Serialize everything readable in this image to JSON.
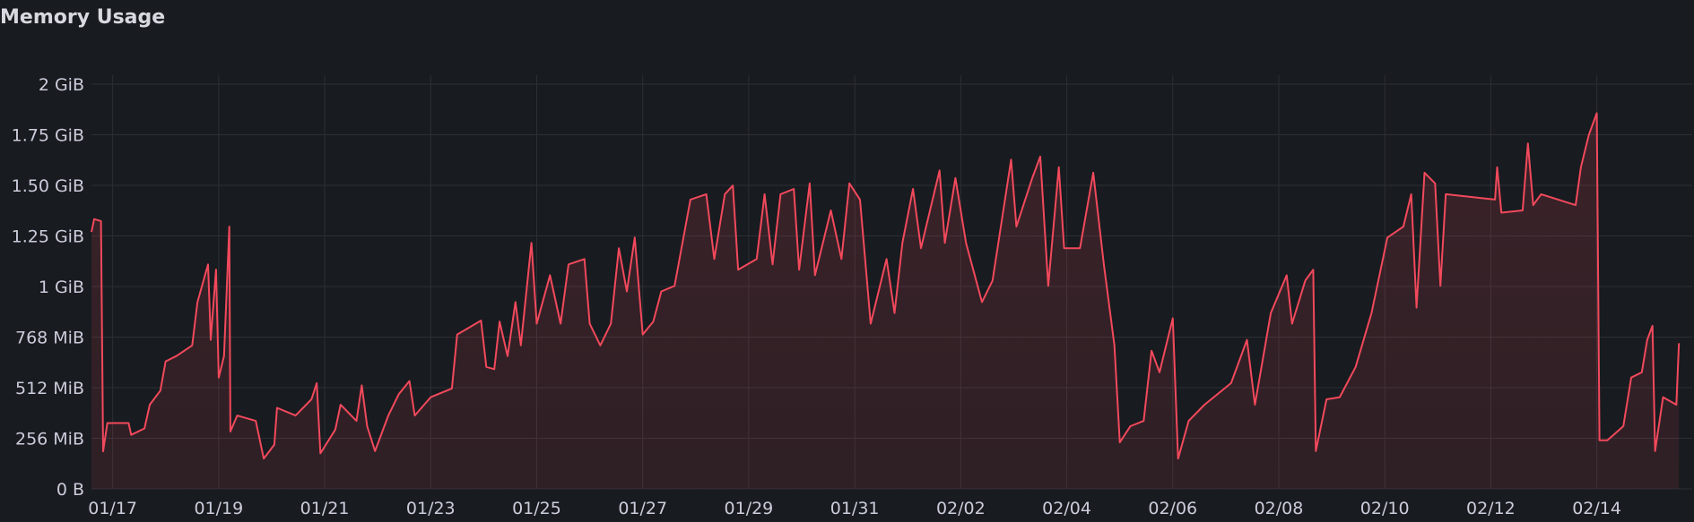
{
  "chart_data": {
    "type": "line",
    "title": "Memory Usage",
    "xlim": [
      0.6,
      30.8
    ],
    "xticks": [
      {
        "value": 1,
        "label": "01/17"
      },
      {
        "value": 3,
        "label": "01/19"
      },
      {
        "value": 5,
        "label": "01/21"
      },
      {
        "value": 7,
        "label": "01/23"
      },
      {
        "value": 9,
        "label": "01/25"
      },
      {
        "value": 11,
        "label": "01/27"
      },
      {
        "value": 13,
        "label": "01/29"
      },
      {
        "value": 15,
        "label": "01/31"
      },
      {
        "value": 17,
        "label": "02/02"
      },
      {
        "value": 19,
        "label": "02/04"
      },
      {
        "value": 21,
        "label": "02/06"
      },
      {
        "value": 23,
        "label": "02/08"
      },
      {
        "value": 25,
        "label": "02/10"
      },
      {
        "value": 27,
        "label": "02/12"
      },
      {
        "value": 29,
        "label": "02/14"
      }
    ],
    "ylim": [
      0,
      2048
    ],
    "yticks": [
      {
        "value": 0,
        "label": "0 B"
      },
      {
        "value": 256,
        "label": "256 MiB"
      },
      {
        "value": 512,
        "label": "512 MiB"
      },
      {
        "value": 768,
        "label": "768 MiB"
      },
      {
        "value": 1024,
        "label": "1 GiB"
      },
      {
        "value": 1280,
        "label": "1.25 GiB"
      },
      {
        "value": 1536,
        "label": "1.50 GiB"
      },
      {
        "value": 1792,
        "label": "1.75 GiB"
      },
      {
        "value": 2048,
        "label": "2 GiB"
      }
    ],
    "grid": true,
    "series": [
      {
        "color": "#f2495c",
        "x": [
          0.6,
          0.65,
          0.78,
          0.82,
          0.9,
          1.3,
          1.35,
          1.6,
          1.7,
          1.9,
          2.0,
          2.2,
          2.5,
          2.6,
          2.8,
          2.85,
          2.95,
          3.0,
          3.1,
          3.2,
          3.22,
          3.35,
          3.7,
          3.85,
          4.05,
          4.1,
          4.45,
          4.75,
          4.85,
          4.92,
          5.2,
          5.3,
          5.6,
          5.7,
          5.8,
          5.95,
          6.2,
          6.4,
          6.6,
          6.7,
          7.0,
          7.4,
          7.5,
          7.85,
          7.95,
          8.05,
          8.2,
          8.3,
          8.45,
          8.6,
          8.7,
          8.9,
          9.0,
          9.25,
          9.45,
          9.6,
          9.9,
          10.0,
          10.2,
          10.4,
          10.55,
          10.7,
          10.85,
          11.0,
          11.2,
          11.35,
          11.6,
          11.9,
          12.2,
          12.35,
          12.55,
          12.7,
          12.8,
          13.15,
          13.3,
          13.45,
          13.6,
          13.85,
          13.95,
          14.15,
          14.25,
          14.55,
          14.75,
          14.9,
          15.1,
          15.3,
          15.6,
          15.75,
          15.9,
          16.1,
          16.25,
          16.6,
          16.7,
          16.9,
          17.1,
          17.4,
          17.6,
          17.95,
          18.05,
          18.35,
          18.5,
          18.65,
          18.85,
          18.95,
          19.25,
          19.5,
          19.7,
          19.9,
          20.0,
          20.2,
          20.45,
          20.6,
          20.75,
          21.0,
          21.1,
          21.3,
          21.6,
          22.1,
          22.4,
          22.55,
          22.85,
          23.15,
          23.25,
          23.5,
          23.65,
          23.7,
          23.9,
          24.15,
          24.45,
          24.75,
          25.05,
          25.35,
          25.5,
          25.6,
          25.75,
          25.95,
          26.05,
          26.15,
          27.08,
          27.12,
          27.2,
          27.6,
          27.7,
          27.8,
          27.95,
          28.6,
          28.7,
          28.85,
          29.0,
          29.05,
          29.2,
          29.5,
          29.65,
          29.85,
          29.95,
          30.05,
          30.1,
          30.25,
          30.5,
          30.55
        ],
        "values": [
          1300,
          1365,
          1355,
          190,
          333,
          333,
          273,
          306,
          426,
          497,
          645,
          672,
          726,
          945,
          1136,
          754,
          1110,
          563,
          672,
          1327,
          290,
          371,
          344,
          153,
          224,
          410,
          371,
          453,
          535,
          180,
          300,
          426,
          344,
          524,
          317,
          191,
          371,
          480,
          546,
          371,
          464,
          508,
          781,
          836,
          852,
          617,
          606,
          847,
          672,
          945,
          726,
          1245,
          836,
          1081,
          836,
          1136,
          1163,
          836,
          726,
          836,
          1218,
          999,
          1272,
          781,
          847,
          999,
          1027,
          1464,
          1491,
          1163,
          1491,
          1535,
          1109,
          1163,
          1491,
          1136,
          1491,
          1518,
          1109,
          1546,
          1081,
          1409,
          1163,
          1546,
          1464,
          836,
          1163,
          890,
          1245,
          1518,
          1218,
          1611,
          1245,
          1573,
          1245,
          945,
          1054,
          1666,
          1327,
          1573,
          1682,
          1027,
          1628,
          1218,
          1218,
          1600,
          1136,
          726,
          235,
          317,
          344,
          699,
          590,
          863,
          153,
          344,
          426,
          535,
          754,
          426,
          890,
          1081,
          836,
          1054,
          1109,
          191,
          453,
          464,
          617,
          890,
          1272,
          1327,
          1491,
          917,
          1600,
          1546,
          1027,
          1491,
          1464,
          1628,
          1398,
          1409,
          1748,
          1436,
          1491,
          1436,
          1628,
          1791,
          1901,
          246,
          246,
          317,
          563,
          590,
          754,
          825,
          191,
          464,
          426,
          737
        ]
      }
    ]
  }
}
